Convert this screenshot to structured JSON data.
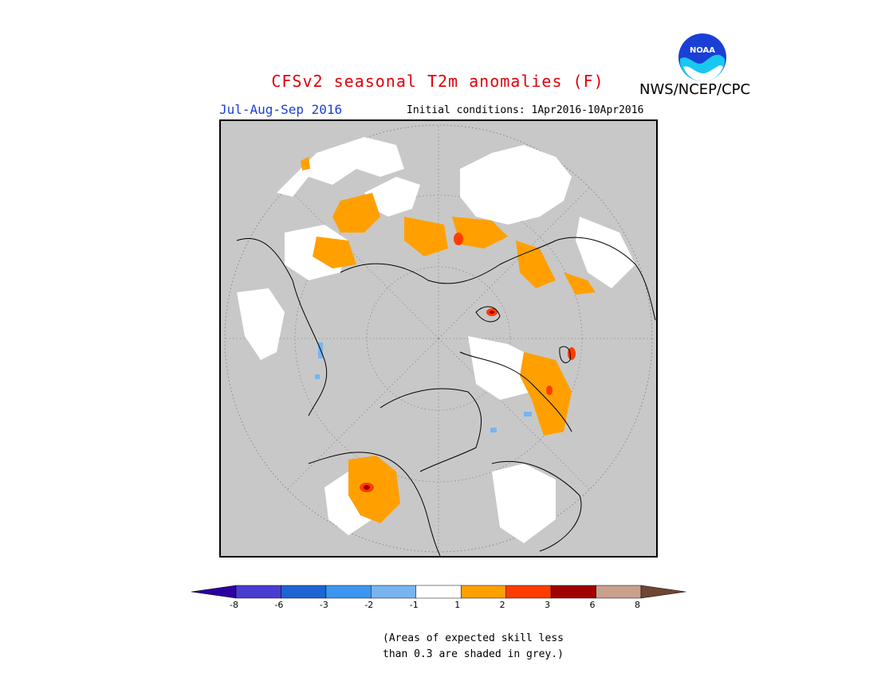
{
  "header": {
    "title": "CFSv2 seasonal T2m anomalies (F)",
    "agency": "NWS/NCEP/CPC",
    "logo_text": "NOAA"
  },
  "map": {
    "season": "Jul-Aug-Sep 2016",
    "initial_conditions": "Initial conditions: 1Apr2016-10Apr2016",
    "projection": "north-polar-stereographic",
    "background_color": "#c8c8c8"
  },
  "legend": {
    "bins": [
      {
        "color": "#2b00a0"
      },
      {
        "color": "#4a3cd0"
      },
      {
        "color": "#1e64d2"
      },
      {
        "color": "#3c96f0"
      },
      {
        "color": "#78b4f0"
      },
      {
        "color": "#ffffff"
      },
      {
        "color": "#ffa000"
      },
      {
        "color": "#ff3c00"
      },
      {
        "color": "#a00000"
      },
      {
        "color": "#c8a08c"
      },
      {
        "color": "#6e4632"
      }
    ],
    "tick_labels": [
      "-8",
      "-6",
      "-3",
      "-2",
      "-1",
      "1",
      "2",
      "3",
      "6",
      "8"
    ]
  },
  "note": {
    "line1": "(Areas of expected skill less",
    "line2": "than 0.3 are shaded in grey.)"
  }
}
